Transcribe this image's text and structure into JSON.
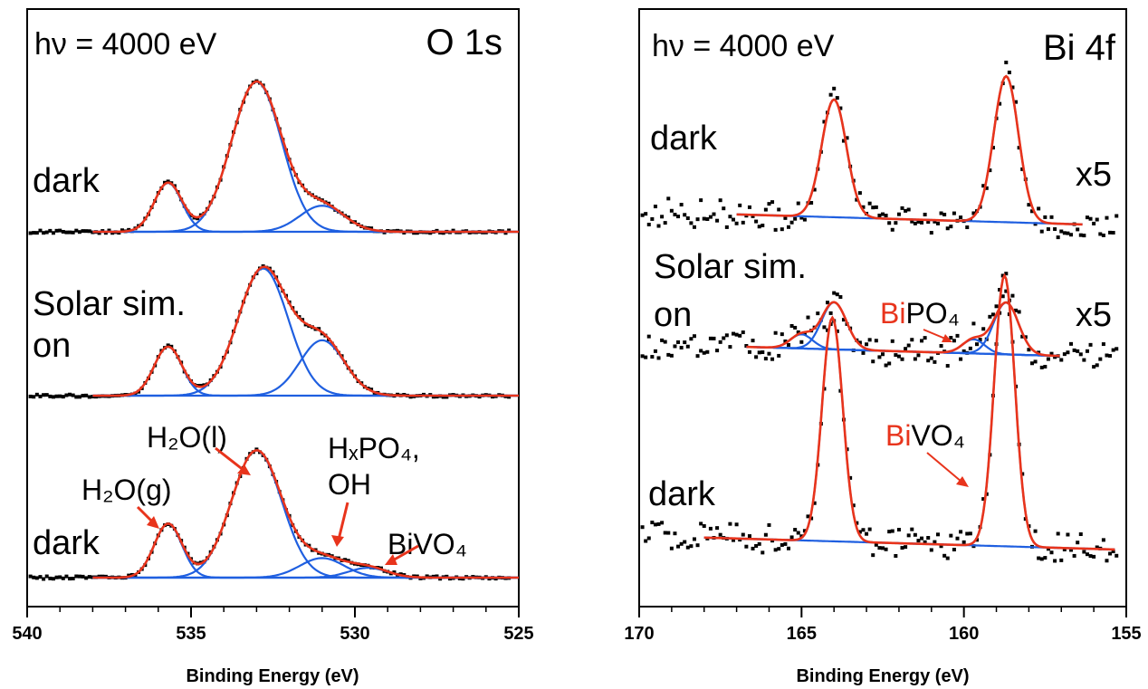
{
  "colors": {
    "fit": "#e8341c",
    "component": "#1f5fe0",
    "data": "#000000",
    "annotation": "#e8341c"
  },
  "chart_data": [
    {
      "type": "line",
      "panel": "O 1s",
      "photon_label": "hν = 4000 eV",
      "title": "O 1s",
      "xlabel": "Binding Energy (eV)",
      "ylabel": "",
      "xlim": [
        540,
        525
      ],
      "x_reversed": true,
      "ticks": [
        "540",
        "535",
        "530",
        "525"
      ],
      "tick_values": [
        540,
        535,
        530,
        525
      ],
      "grid": false,
      "traces": [
        {
          "label": "dark",
          "offset": 1.0,
          "fit_range": [
            538,
            525
          ],
          "background": 0.0,
          "components": [
            {
              "center": 535.7,
              "height": 0.3,
              "fwhm": 1.0
            },
            {
              "center": 533.0,
              "height": 0.92,
              "fwhm": 1.8
            },
            {
              "center": 531.0,
              "height": 0.16,
              "fwhm": 1.6
            }
          ]
        },
        {
          "label_line1": "Solar sim.",
          "label_line2": "on",
          "offset": 0.0,
          "fit_range": [
            538,
            525
          ],
          "background": 0.0,
          "components": [
            {
              "center": 535.7,
              "height": 0.3,
              "fwhm": 1.0
            },
            {
              "center": 532.8,
              "height": 0.78,
              "fwhm": 1.8
            },
            {
              "center": 531.0,
              "height": 0.34,
              "fwhm": 1.6
            }
          ]
        },
        {
          "label": "dark",
          "offset": -1.0,
          "fit_range": [
            538,
            525
          ],
          "background": 0.0,
          "components": [
            {
              "center": 535.7,
              "height": 0.33,
              "fwhm": 1.0
            },
            {
              "center": 533.0,
              "height": 0.78,
              "fwhm": 1.8
            },
            {
              "center": 531.0,
              "height": 0.12,
              "fwhm": 1.6
            },
            {
              "center": 529.6,
              "height": 0.06,
              "fwhm": 1.4
            }
          ]
        }
      ],
      "annotations": {
        "h2o_g": "H₂O(g)",
        "h2o_l": "H₂O(l)",
        "hxpo4_line1": "HₓPO₄,",
        "hxpo4_line2": "OH",
        "bivo4": "BiVO₄"
      }
    },
    {
      "type": "line",
      "panel": "Bi 4f",
      "photon_label": "hν = 4000 eV",
      "title": "Bi 4f",
      "xlabel": "Binding Energy (eV)",
      "ylabel": "",
      "xlim": [
        170,
        155
      ],
      "x_reversed": true,
      "ticks": [
        "170",
        "165",
        "160",
        "155"
      ],
      "tick_values": [
        170,
        165,
        160,
        155
      ],
      "grid": false,
      "traces": [
        {
          "label": "dark",
          "scale": "x5",
          "offset": 1.0,
          "fit_range": [
            167,
            156.3
          ],
          "components": [
            {
              "center": 164.0,
              "height": 0.5,
              "fwhm": 0.9
            },
            {
              "center": 158.7,
              "height": 0.62,
              "fwhm": 0.9
            }
          ]
        },
        {
          "label_line1": "Solar sim.",
          "label_line2": "on",
          "scale": "x5",
          "offset": 0.0,
          "fit_range": [
            166.7,
            157.0
          ],
          "components": [
            {
              "center": 165.0,
              "height": 0.06,
              "fwhm": 0.8
            },
            {
              "center": 164.0,
              "height": 0.2,
              "fwhm": 0.9
            },
            {
              "center": 159.7,
              "height": 0.06,
              "fwhm": 0.8
            },
            {
              "center": 158.7,
              "height": 0.22,
              "fwhm": 0.9
            }
          ]
        },
        {
          "label": "dark",
          "offset": -1.0,
          "fit_range": [
            168,
            155.3
          ],
          "components": [
            {
              "center": 164.05,
              "height": 0.95,
              "fwhm": 0.75
            },
            {
              "center": 158.75,
              "height": 1.15,
              "fwhm": 0.75
            }
          ]
        }
      ],
      "annotations": {
        "bipo4_bi": "Bi",
        "bipo4_rest": "PO₄",
        "bivo4_bi": "Bi",
        "bivo4_rest": "VO₄"
      }
    }
  ]
}
